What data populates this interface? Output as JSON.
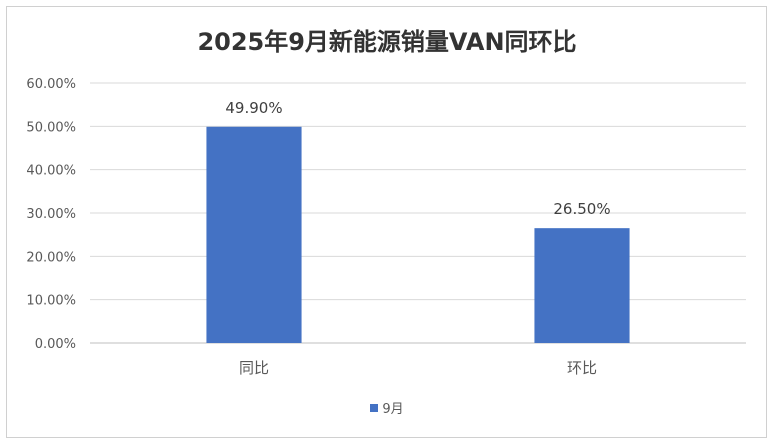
{
  "chart_data": {
    "type": "bar",
    "title": "2025年9月新能源销量VAN同环比",
    "categories": [
      "同比",
      "环比"
    ],
    "series": [
      {
        "name": "9月",
        "values": [
          0.499,
          0.265
        ],
        "data_labels": [
          "49.90%",
          "26.50%"
        ]
      }
    ],
    "ylim": [
      0,
      0.6
    ],
    "y_ticks": [
      "0.00%",
      "10.00%",
      "20.00%",
      "30.00%",
      "40.00%",
      "50.00%",
      "60.00%"
    ],
    "y_tick_values": [
      0,
      0.1,
      0.2,
      0.3,
      0.4,
      0.5,
      0.6
    ],
    "grid": true,
    "legend_position": "bottom",
    "colors": {
      "bar": "#4472C4",
      "grid": "#d9d9d9",
      "axis": "#bfbfbf",
      "text": "#595959"
    }
  }
}
